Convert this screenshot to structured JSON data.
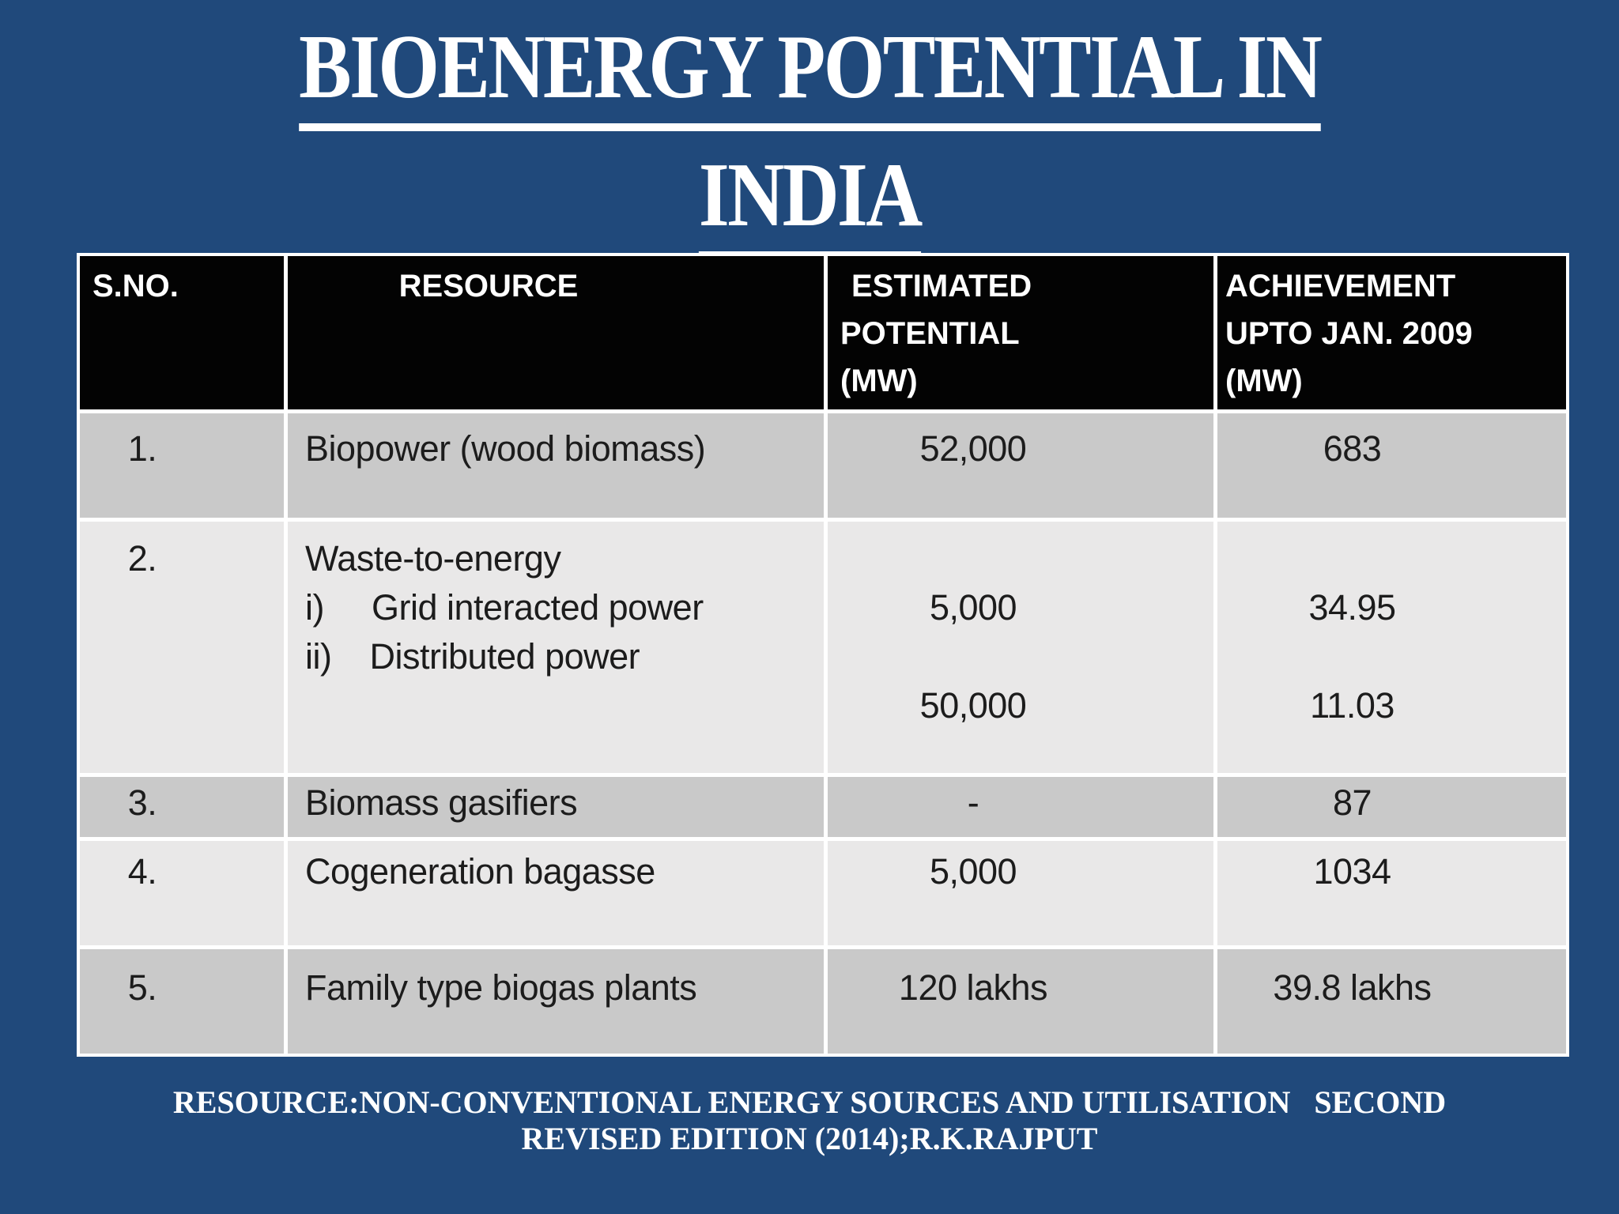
{
  "title": {
    "line1": "BIOENERGY POTENTIAL IN",
    "line2": "INDIA"
  },
  "colors": {
    "background": "#20497B",
    "header_bg": "#030303",
    "header_text": "#FFFFFF",
    "row_dark": "#C9C9C9",
    "row_light": "#E9E8E8",
    "grid_line": "#FFFFFF",
    "body_text": "#1C1C1C",
    "title_text": "#FFFFFF"
  },
  "table": {
    "headers": [
      {
        "lines": [
          "S.NO."
        ]
      },
      {
        "lines": [
          "RESOURCE"
        ]
      },
      {
        "lines": [
          "ESTIMATED",
          "POTENTIAL",
          "(MW)"
        ]
      },
      {
        "lines": [
          "ACHIEVEMENT",
          "UPTO JAN. 2009",
          "(MW)"
        ]
      }
    ],
    "rows": [
      {
        "sno": "1.",
        "resource": [
          "Biopower (wood biomass)"
        ],
        "estimated": [
          "52,000"
        ],
        "achievement": [
          "683"
        ]
      },
      {
        "sno": "2.",
        "resource": [
          "Waste-to-energy",
          "i)     Grid interacted power",
          "ii)    Distributed power",
          ""
        ],
        "estimated": [
          "",
          "5,000",
          "",
          "50,000"
        ],
        "achievement": [
          "",
          "34.95",
          "",
          "11.03"
        ]
      },
      {
        "sno": "3.",
        "resource": [
          "Biomass gasifiers"
        ],
        "estimated": [
          "-"
        ],
        "achievement": [
          "87"
        ]
      },
      {
        "sno": "4.",
        "resource": [
          "Cogeneration bagasse"
        ],
        "estimated": [
          "5,000"
        ],
        "achievement": [
          "1034"
        ]
      },
      {
        "sno": "5.",
        "resource": [
          "Family type biogas plants"
        ],
        "estimated": [
          "120 lakhs"
        ],
        "achievement": [
          "39.8 lakhs"
        ]
      }
    ]
  },
  "footer": {
    "line1": "RESOURCE:NON-CONVENTIONAL ENERGY SOURCES AND UTILISATION   SECOND",
    "line2": "REVISED EDITION (2014);R.K.RAJPUT"
  }
}
